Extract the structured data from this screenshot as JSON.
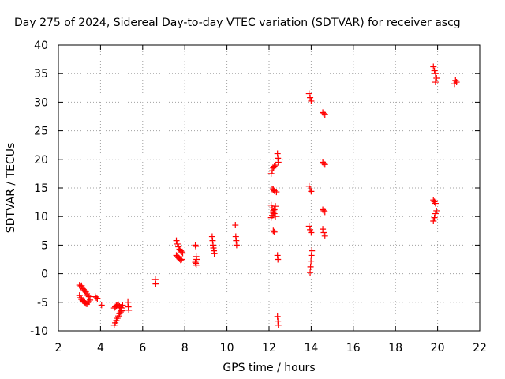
{
  "chart_data": {
    "type": "scatter",
    "title": "Day 275 of 2024, Sidereal Day-to-day VTEC variation (SDTVAR) for receiver ascg",
    "xlabel": "GPS time / hours",
    "ylabel": "SDTVAR / TECUs",
    "xlim": [
      2,
      22
    ],
    "ylim": [
      -10,
      40
    ],
    "xticks": [
      2,
      4,
      6,
      8,
      10,
      12,
      14,
      16,
      18,
      20,
      22
    ],
    "yticks": [
      -10,
      -5,
      0,
      5,
      10,
      15,
      20,
      25,
      30,
      35,
      40
    ],
    "grid": true,
    "marker": "+",
    "series": [
      {
        "name": "SDTVAR",
        "color": "#ff0000",
        "x": [
          3.0,
          3.05,
          3.1,
          3.15,
          3.2,
          3.25,
          3.3,
          3.35,
          3.4,
          3.45,
          3.0,
          3.05,
          3.1,
          3.15,
          3.2,
          3.25,
          3.3,
          3.35,
          3.4,
          3.45,
          3.5,
          3.75,
          3.8,
          3.85,
          4.05,
          4.65,
          4.7,
          4.75,
          4.8,
          4.85,
          4.9,
          4.95,
          5.0,
          4.65,
          4.7,
          4.75,
          4.8,
          4.85,
          4.9,
          4.95,
          5.0,
          5.05,
          5.3,
          5.32,
          5.34,
          6.6,
          6.62,
          7.6,
          7.65,
          7.7,
          7.75,
          7.8,
          7.85,
          7.9,
          7.6,
          7.65,
          7.7,
          7.75,
          7.8,
          7.85,
          8.5,
          8.52,
          8.54,
          8.56,
          8.5,
          8.52,
          8.54,
          9.3,
          9.32,
          9.34,
          9.36,
          9.38,
          9.4,
          10.4,
          10.42,
          10.44,
          10.46,
          12.1,
          12.15,
          12.2,
          12.25,
          12.3,
          12.15,
          12.2,
          12.25,
          12.35,
          12.1,
          12.15,
          12.2,
          12.25,
          12.3,
          12.1,
          12.15,
          12.2,
          12.25,
          12.3,
          12.2,
          12.25,
          12.4,
          12.42,
          12.44,
          12.4,
          12.42,
          12.4,
          12.42,
          12.44,
          13.9,
          13.95,
          14.0,
          13.9,
          13.95,
          14.0,
          13.9,
          13.95,
          14.0,
          13.95,
          13.97,
          13.99,
          14.01,
          14.03,
          14.55,
          14.6,
          14.65,
          14.55,
          14.6,
          14.65,
          14.55,
          14.6,
          14.65,
          14.55,
          14.6,
          14.65,
          19.8,
          19.85,
          19.9,
          19.95,
          19.9,
          19.8,
          19.85,
          19.9,
          19.8,
          19.85,
          19.9,
          19.95,
          20.8,
          20.85,
          20.9
        ],
        "y": [
          -2.0,
          -2.3,
          -2.1,
          -2.6,
          -2.8,
          -3.0,
          -3.2,
          -3.5,
          -3.8,
          -4.0,
          -3.8,
          -4.2,
          -4.5,
          -4.7,
          -4.8,
          -5.0,
          -5.2,
          -5.3,
          -5.0,
          -4.9,
          -4.6,
          -4.0,
          -4.2,
          -4.4,
          -5.5,
          -9.0,
          -8.6,
          -8.2,
          -7.8,
          -7.4,
          -7.0,
          -6.7,
          -6.5,
          -6.0,
          -5.8,
          -5.6,
          -5.5,
          -5.4,
          -5.7,
          -5.9,
          -6.0,
          -5.5,
          -5.0,
          -5.8,
          -6.4,
          -1.0,
          -1.8,
          5.8,
          5.2,
          4.7,
          4.3,
          4.0,
          3.8,
          3.6,
          3.2,
          3.0,
          2.8,
          2.6,
          2.4,
          2.5,
          5.0,
          4.8,
          3.0,
          2.5,
          2.0,
          1.8,
          1.5,
          6.5,
          5.8,
          5.0,
          4.5,
          4.0,
          3.5,
          8.5,
          6.5,
          5.8,
          5.0,
          17.5,
          18.0,
          18.5,
          18.8,
          19.0,
          14.8,
          14.7,
          14.5,
          14.3,
          12.0,
          11.5,
          11.0,
          10.5,
          10.0,
          9.8,
          10.2,
          10.6,
          11.2,
          11.8,
          7.5,
          7.3,
          21.0,
          20.2,
          19.5,
          3.2,
          2.5,
          -7.5,
          -8.3,
          -9.0,
          31.5,
          30.8,
          30.2,
          15.3,
          14.8,
          14.4,
          8.3,
          7.7,
          7.2,
          0.2,
          1.2,
          2.2,
          3.2,
          4.0,
          28.2,
          28.0,
          27.8,
          19.5,
          19.3,
          19.1,
          11.2,
          11.0,
          10.8,
          7.8,
          7.2,
          6.6,
          36.2,
          35.5,
          35.0,
          34.2,
          33.5,
          12.9,
          12.6,
          12.3,
          9.2,
          9.8,
          10.5,
          11.0,
          33.2,
          33.8,
          33.5
        ]
      }
    ]
  }
}
